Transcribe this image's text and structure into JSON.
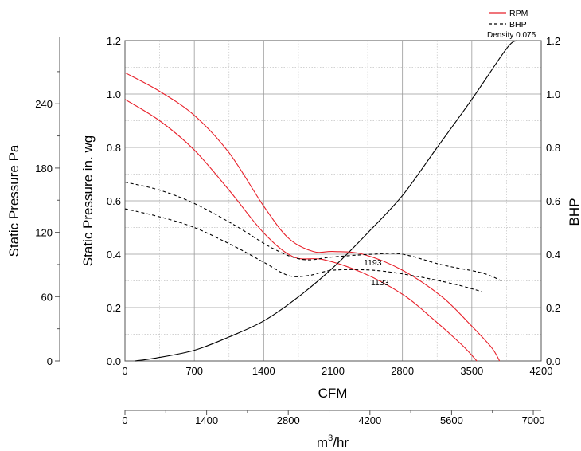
{
  "chart_data": {
    "type": "line",
    "legend": {
      "placement": "top-right",
      "entries": [
        {
          "label": "RPM",
          "style": "solid",
          "color": "#e8202a"
        },
        {
          "label": "BHP",
          "style": "dashed",
          "color": "#000000"
        }
      ],
      "note": "Density 0.075"
    },
    "x_axis": {
      "label": "CFM",
      "range": [
        0,
        4200
      ],
      "ticks": [
        "0",
        "700",
        "1400",
        "2100",
        "2800",
        "3500",
        "4200"
      ]
    },
    "x2_axis": {
      "label_base": "m",
      "label_sup": "3",
      "label_rest": "/hr",
      "range": [
        0,
        7136
      ],
      "tick_values": [
        0,
        1400,
        2800,
        4200,
        5600,
        7000
      ],
      "ticks": [
        "0",
        "1400",
        "2800",
        "4200",
        "5600",
        "7000"
      ]
    },
    "y_left": {
      "label": "Static Pressure in. wg",
      "range": [
        0,
        1.2
      ],
      "ticks": [
        "0.0",
        "0.2",
        "0.4",
        "0.6",
        "0.8",
        "1.0",
        "1.2"
      ]
    },
    "y_left2": {
      "label": "Static Pressure Pa",
      "range": [
        0,
        298.9
      ],
      "tick_values": [
        0,
        60,
        120,
        180,
        240
      ],
      "ticks": [
        "0",
        "60",
        "120",
        "180",
        "240"
      ]
    },
    "y_right": {
      "label": "BHP",
      "range": [
        0,
        1.2
      ],
      "ticks": [
        "0.0",
        "0.2",
        "0.4",
        "0.6",
        "0.8",
        "1.0",
        "1.2"
      ]
    },
    "grid": true,
    "series": [
      {
        "name": "RPM",
        "label": "1193",
        "style": "solid",
        "color": "#e8202a",
        "points": [
          [
            0,
            1.08
          ],
          [
            350,
            1.01
          ],
          [
            700,
            0.92
          ],
          [
            1050,
            0.78
          ],
          [
            1400,
            0.58
          ],
          [
            1650,
            0.46
          ],
          [
            1900,
            0.41
          ],
          [
            2100,
            0.41
          ],
          [
            2400,
            0.4
          ],
          [
            2800,
            0.34
          ],
          [
            3200,
            0.24
          ],
          [
            3500,
            0.13
          ],
          [
            3700,
            0.05
          ],
          [
            3780,
            0.0
          ]
        ]
      },
      {
        "name": "RPM",
        "label": "1133",
        "style": "solid",
        "color": "#e8202a",
        "points": [
          [
            0,
            0.98
          ],
          [
            350,
            0.9
          ],
          [
            700,
            0.79
          ],
          [
            1050,
            0.64
          ],
          [
            1400,
            0.48
          ],
          [
            1700,
            0.39
          ],
          [
            2000,
            0.38
          ],
          [
            2400,
            0.33
          ],
          [
            2800,
            0.25
          ],
          [
            3100,
            0.16
          ],
          [
            3400,
            0.06
          ],
          [
            3550,
            0.0
          ]
        ]
      },
      {
        "name": "BHP",
        "label": "1193",
        "style": "dashed",
        "color": "#000000",
        "points": [
          [
            0,
            0.67
          ],
          [
            350,
            0.64
          ],
          [
            700,
            0.59
          ],
          [
            1100,
            0.51
          ],
          [
            1500,
            0.42
          ],
          [
            1800,
            0.38
          ],
          [
            2100,
            0.39
          ],
          [
            2500,
            0.4
          ],
          [
            2800,
            0.4
          ],
          [
            3200,
            0.36
          ],
          [
            3600,
            0.33
          ],
          [
            3800,
            0.3
          ]
        ]
      },
      {
        "name": "BHP",
        "label": "1133",
        "style": "dashed",
        "color": "#000000",
        "points": [
          [
            0,
            0.57
          ],
          [
            350,
            0.54
          ],
          [
            700,
            0.5
          ],
          [
            1100,
            0.43
          ],
          [
            1400,
            0.37
          ],
          [
            1650,
            0.32
          ],
          [
            1850,
            0.32
          ],
          [
            2100,
            0.34
          ],
          [
            2500,
            0.34
          ],
          [
            2900,
            0.32
          ],
          [
            3300,
            0.29
          ],
          [
            3600,
            0.26
          ]
        ]
      },
      {
        "name": "System curve",
        "style": "solid",
        "color": "#000000",
        "points": [
          [
            100,
            0.0
          ],
          [
            300,
            0.01
          ],
          [
            700,
            0.04
          ],
          [
            1050,
            0.09
          ],
          [
            1400,
            0.15
          ],
          [
            1750,
            0.24
          ],
          [
            2100,
            0.35
          ],
          [
            2450,
            0.48
          ],
          [
            2800,
            0.62
          ],
          [
            3150,
            0.8
          ],
          [
            3500,
            0.98
          ],
          [
            3850,
            1.17
          ],
          [
            3950,
            1.2
          ]
        ]
      }
    ]
  }
}
